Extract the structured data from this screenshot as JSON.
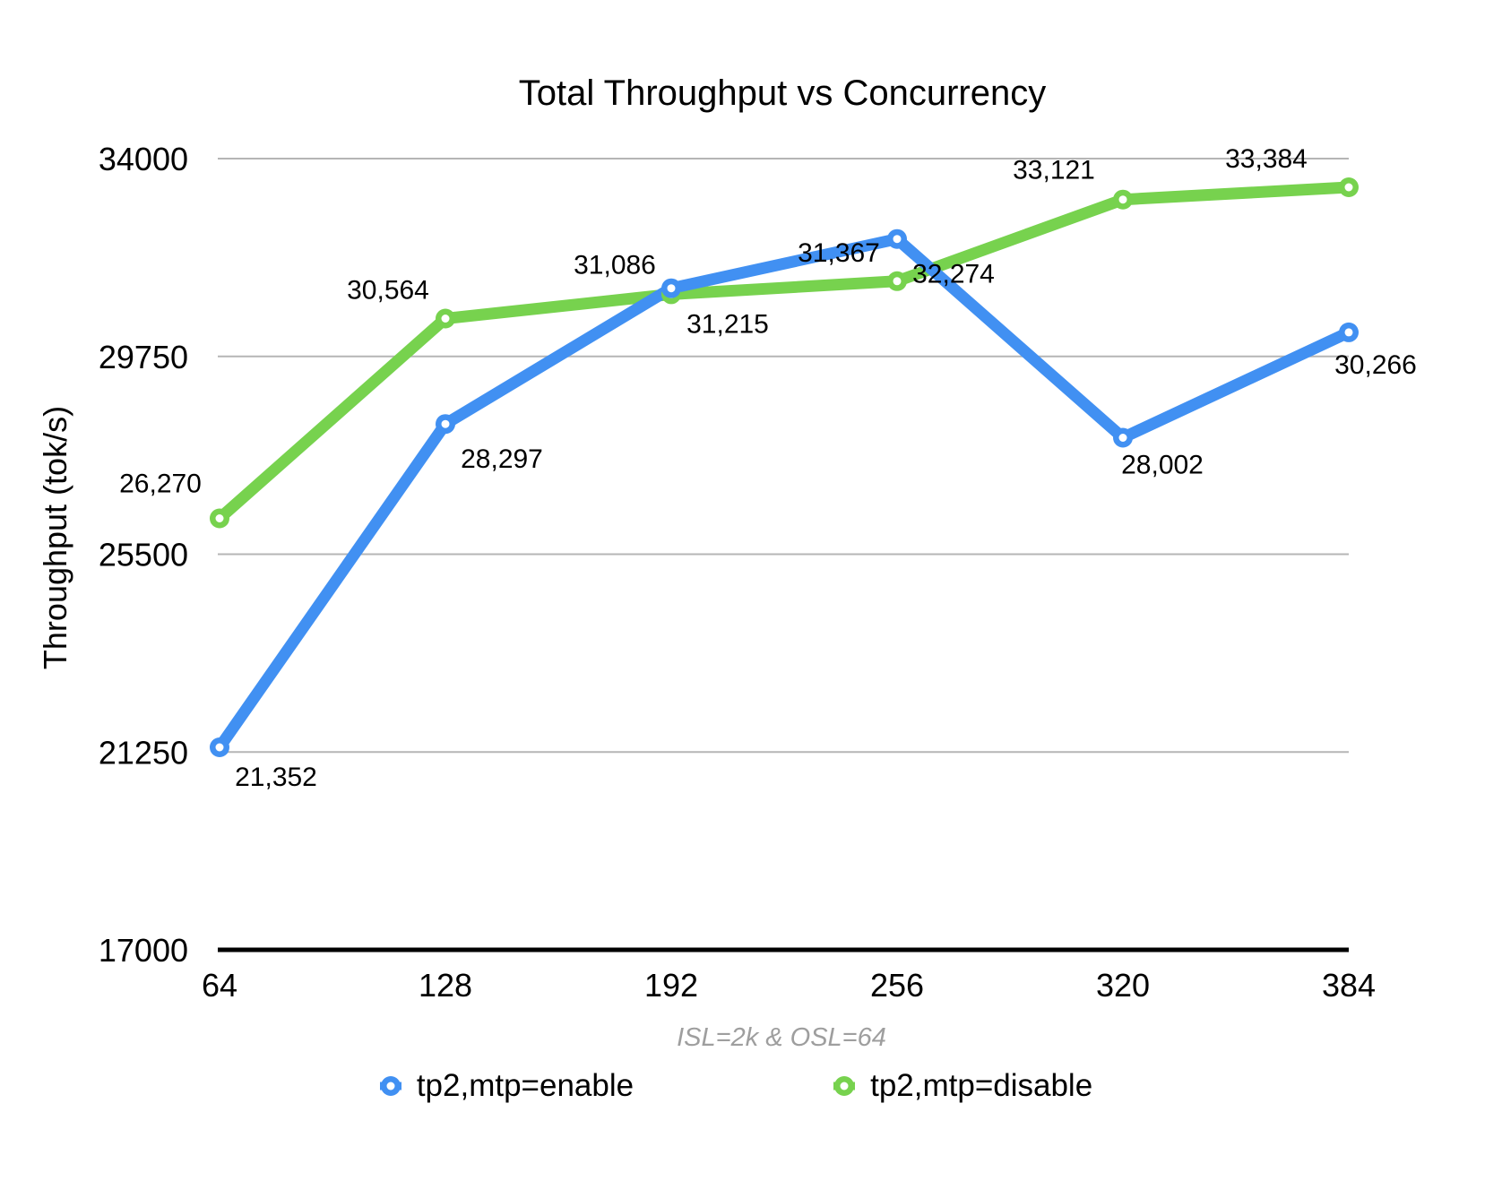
{
  "title": "Total Throughput vs Concurrency",
  "y_axis": {
    "title": "Throughput (tok/s)",
    "ticks": [
      "34000",
      "29750",
      "25500",
      "21250",
      "17000"
    ]
  },
  "x_axis": {
    "title": "ISL=2k & OSL=64",
    "ticks": [
      "64",
      "128",
      "192",
      "256",
      "320",
      "384"
    ]
  },
  "legend": [
    {
      "label": "tp2,mtp=enable",
      "color": "#4190f2"
    },
    {
      "label": "tp2,mtp=disable",
      "color": "#77d24e"
    }
  ],
  "colors": {
    "gridline": "#b5b5b5",
    "axis_line": "#000000",
    "subtitle_text": "#9e9e9e",
    "label_text": "#000000"
  },
  "chart_data": {
    "type": "line",
    "title": "Total Throughput vs Concurrency",
    "xlabel": "ISL=2k & OSL=64",
    "ylabel": "Throughput (tok/s)",
    "x": [
      64,
      128,
      192,
      256,
      320,
      384
    ],
    "ylim": [
      17000,
      34000
    ],
    "y_ticks": [
      34000,
      29750,
      25500,
      21250,
      17000
    ],
    "grid": "horizontal",
    "legend_position": "bottom",
    "series": [
      {
        "name": "tp2,mtp=enable",
        "color": "#4190f2",
        "values": [
          21352,
          28297,
          31215,
          32274,
          28002,
          30266
        ],
        "labels": [
          "21,352",
          "28,297",
          "31,215",
          "32,274",
          "28,002",
          "30,266"
        ]
      },
      {
        "name": "tp2,mtp=disable",
        "color": "#77d24e",
        "values": [
          26270,
          30564,
          31086,
          31367,
          33121,
          33384
        ],
        "labels": [
          "26,270",
          "30,564",
          "31,086",
          "31,367",
          "33,121",
          "33,384"
        ]
      }
    ]
  }
}
